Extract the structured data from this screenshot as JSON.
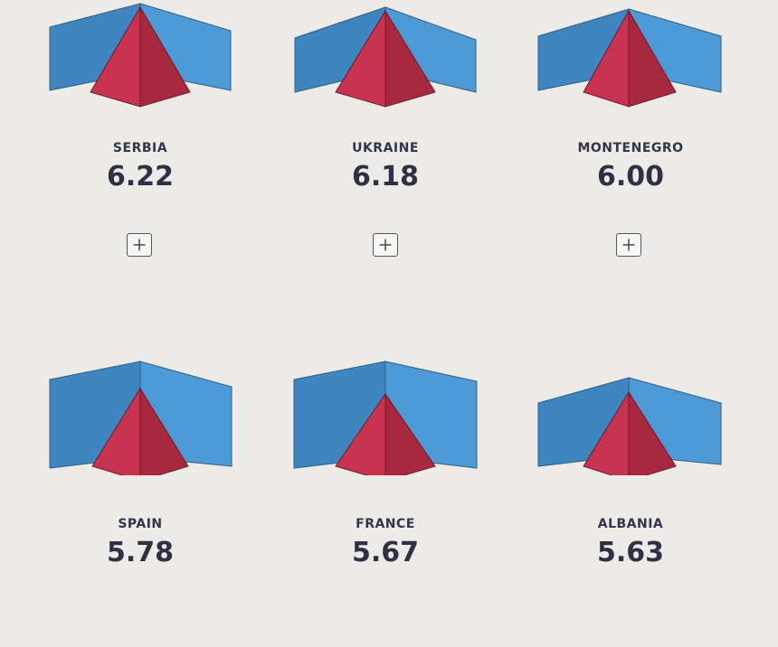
{
  "colors": {
    "background": "#ecebe8",
    "wing_left": "#3f85bf",
    "wing_right": "#4d9ad6",
    "pyramid_left": "#c8344f",
    "pyramid_right": "#a8293f",
    "text": "#303044"
  },
  "cards": [
    {
      "country": "SERBIA",
      "score": "6.22",
      "has_expand": true,
      "expand_icon": "plus-icon"
    },
    {
      "country": "UKRAINE",
      "score": "6.18",
      "has_expand": true,
      "expand_icon": "plus-icon"
    },
    {
      "country": "MONTENEGRO",
      "score": "6.00",
      "has_expand": true,
      "expand_icon": "plus-icon"
    },
    {
      "country": "SPAIN",
      "score": "5.78",
      "has_expand": false
    },
    {
      "country": "FRANCE",
      "score": "5.67",
      "has_expand": false
    },
    {
      "country": "ALBANIA",
      "score": "5.63",
      "has_expand": false
    }
  ]
}
